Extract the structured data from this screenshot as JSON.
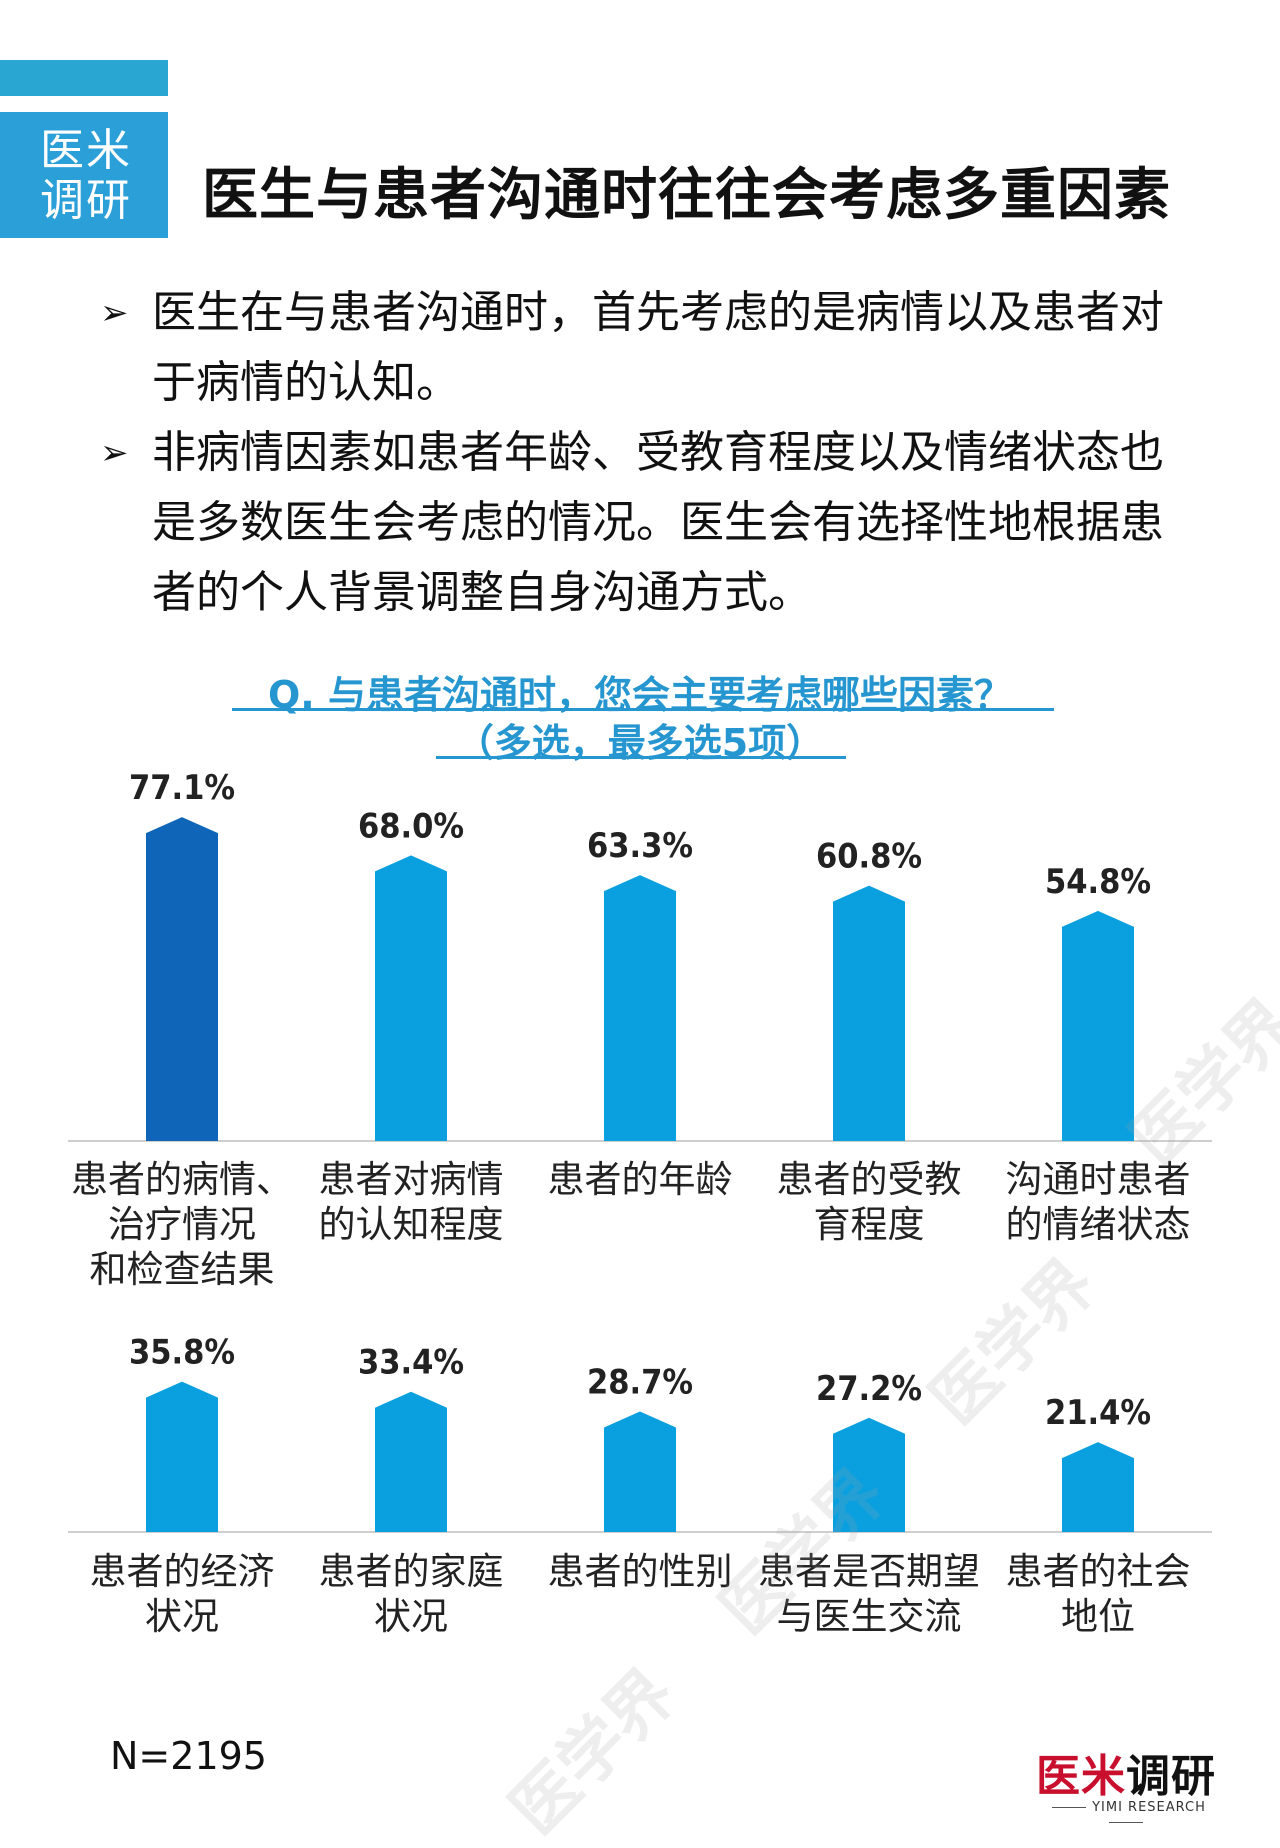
{
  "header": {
    "logo_line1": "医米",
    "logo_line2": "调研",
    "title": "医生与患者沟通时往往会考虑多重因素"
  },
  "bullets": [
    {
      "arrow": "➢",
      "text": "医生在与患者沟通时，首先考虑的是病情以及患者对于病情的认知。"
    },
    {
      "arrow": "➢",
      "text": "非病情因素如患者年龄、受教育程度以及情绪状态也是多数医生会考虑的情况。医生会有选择性地根据患者的个人背景调整自身沟通方式。"
    }
  ],
  "question": {
    "line1": "Q. 与患者沟通时，您会主要考虑哪些因素？",
    "line2": "（多选，最多选5项）"
  },
  "chart_data": {
    "type": "bar",
    "title": "Q. 与患者沟通时，您会主要考虑哪些因素？（多选，最多选5项）",
    "unit": "%",
    "highlight_color": "#0f66b8",
    "bar_color": "#0aa0e0",
    "rows": [
      {
        "items": [
          {
            "label": [
              "患者的病情、",
              "治疗情况",
              "和检查结果"
            ],
            "value": 77.1,
            "value_label": "77.1%",
            "highlight": true
          },
          {
            "label": [
              "患者对病情",
              "的认知程度"
            ],
            "value": 68.0,
            "value_label": "68.0%"
          },
          {
            "label": [
              "患者的年龄"
            ],
            "value": 63.3,
            "value_label": "63.3%"
          },
          {
            "label": [
              "患者的受教",
              "育程度"
            ],
            "value": 60.8,
            "value_label": "60.8%"
          },
          {
            "label": [
              "沟通时患者",
              "的情绪状态"
            ],
            "value": 54.8,
            "value_label": "54.8%"
          }
        ]
      },
      {
        "items": [
          {
            "label": [
              "患者的经济",
              "状况"
            ],
            "value": 35.8,
            "value_label": "35.8%"
          },
          {
            "label": [
              "患者的家庭",
              "状况"
            ],
            "value": 33.4,
            "value_label": "33.4%"
          },
          {
            "label": [
              "患者的性别"
            ],
            "value": 28.7,
            "value_label": "28.7%"
          },
          {
            "label": [
              "患者是否期望",
              "与医生交流"
            ],
            "value": 27.2,
            "value_label": "27.2%"
          },
          {
            "label": [
              "患者的社会",
              "地位"
            ],
            "value": 21.4,
            "value_label": "21.4%"
          }
        ]
      }
    ]
  },
  "footer": {
    "n": "N=2195",
    "brand_a": "医米",
    "brand_b": "调研",
    "brand_sub": "YIMI RESEARCH"
  },
  "watermark_text": "医学界"
}
